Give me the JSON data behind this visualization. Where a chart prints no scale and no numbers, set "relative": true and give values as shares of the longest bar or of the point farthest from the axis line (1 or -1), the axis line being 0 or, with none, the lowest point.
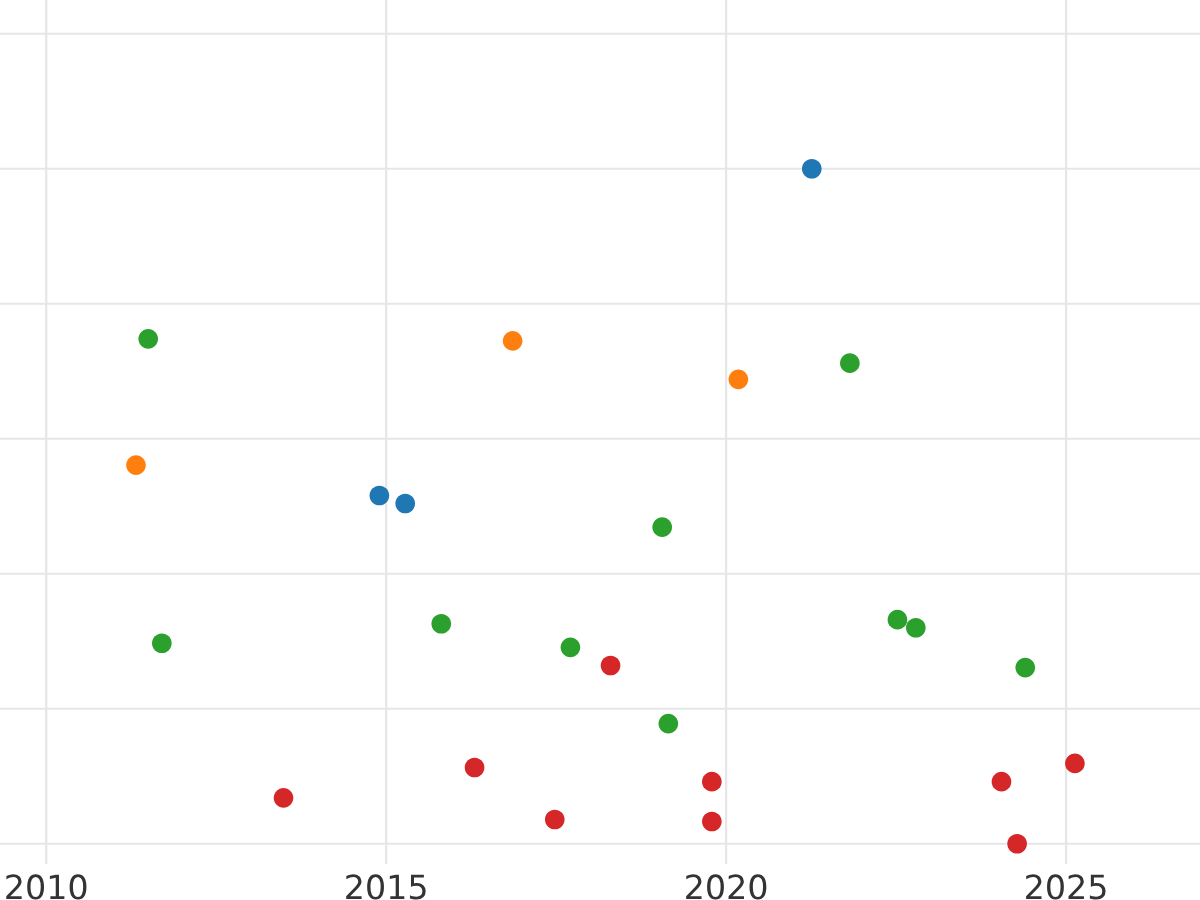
{
  "chart_data": {
    "type": "scatter",
    "relative": true,
    "xlim": [
      2009.32,
      2026.97
    ],
    "xticks": [
      2010,
      2015,
      2020,
      2025
    ],
    "tick_labels": "x",
    "grid": true,
    "marker": "circle",
    "series": [
      {
        "color": "#1f77b4",
        "x": [
          2021.26,
          2014.9,
          2015.28
        ],
        "values": [
          1.0,
          0.516,
          0.504
        ]
      },
      {
        "color": "#ff7f0e",
        "x": [
          2011.32,
          2016.86,
          2020.18
        ],
        "values": [
          0.561,
          0.745,
          0.688
        ]
      },
      {
        "color": "#2ca02c",
        "x": [
          2011.5,
          2011.7,
          2015.81,
          2017.71,
          2019.06,
          2019.15,
          2021.82,
          2022.52,
          2022.79,
          2024.4
        ],
        "values": [
          0.748,
          0.297,
          0.326,
          0.291,
          0.469,
          0.178,
          0.712,
          0.332,
          0.32,
          0.261
        ]
      },
      {
        "color": "#d62728",
        "x": [
          2013.49,
          2016.3,
          2017.48,
          2018.3,
          2019.79,
          2019.79,
          2024.05,
          2024.28,
          2025.13
        ],
        "values": [
          0.068,
          0.113,
          0.036,
          0.264,
          0.092,
          0.033,
          0.092,
          0.0,
          0.119
        ]
      }
    ]
  }
}
